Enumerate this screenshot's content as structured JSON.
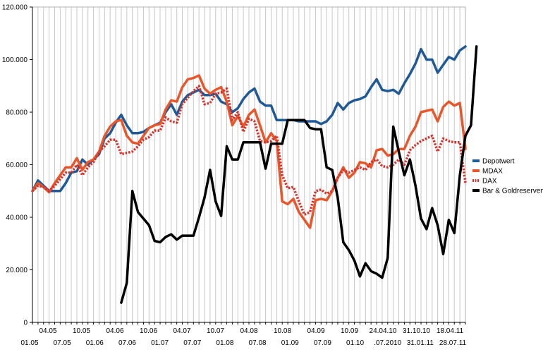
{
  "chart_data": {
    "type": "line",
    "title": "",
    "xlabel": "",
    "ylabel": "",
    "ylim": [
      0,
      120000
    ],
    "y_ticks": [
      "0",
      "20.000",
      "40.000",
      "60.000",
      "80.000",
      "100.000",
      "120.000"
    ],
    "y_tick_values": [
      0,
      20000,
      40000,
      60000,
      80000,
      100000,
      120000
    ],
    "x_tick_labels_upper": [
      "04.05",
      "10.05",
      "04.06",
      "10.06",
      "04.07",
      "10.07",
      "04.08",
      "10.08",
      "04.09",
      "10.09",
      "24.04.10",
      "31.10.10",
      "18.04.11"
    ],
    "x_tick_labels_lower": [
      "01.05",
      "07.05",
      "01.06",
      "07.06",
      "01.07",
      "07.07",
      "01.08",
      "07.08",
      "01.09",
      "07.09",
      "01.10",
      ".07.2010",
      "31.01.11",
      "28.07.11"
    ],
    "grid": "vertical",
    "legend_position": "right",
    "series": [
      {
        "name": "Depotwert",
        "color": "#1f5a96",
        "style": "solid",
        "values": [
          50000,
          54000,
          52000,
          50000,
          50000,
          50000,
          53000,
          57000,
          57500,
          62000,
          60000,
          62000,
          64000,
          70000,
          72000,
          76000,
          79000,
          75000,
          72000,
          72000,
          72500,
          74000,
          75000,
          76000,
          80000,
          83000,
          79000,
          84000,
          86500,
          87500,
          88500,
          86500,
          86500,
          87000,
          84000,
          83000,
          80000,
          81500,
          85000,
          87500,
          89000,
          84000,
          82500,
          82500,
          77000,
          77000,
          77000,
          77000,
          76500,
          76500,
          76500,
          76500,
          75500,
          76500,
          79000,
          83500,
          81000,
          83500,
          84500,
          85000,
          86000,
          89500,
          92500,
          88500,
          88000,
          88500,
          87000,
          91000,
          94500,
          98500,
          104000,
          100000,
          100000,
          95000,
          98000,
          101000,
          100000,
          103500,
          105000
        ]
      },
      {
        "name": "MDAX",
        "color": "#e8562a",
        "style": "solid",
        "values": [
          50000,
          53000,
          51500,
          49500,
          53000,
          56000,
          59000,
          59000,
          62500,
          58000,
          61000,
          62000,
          65000,
          71000,
          74500,
          76500,
          77000,
          71000,
          68500,
          68000,
          71000,
          74000,
          75000,
          75500,
          81000,
          84500,
          84000,
          89500,
          92500,
          93000,
          94000,
          89000,
          87000,
          88500,
          89500,
          84000,
          75000,
          78500,
          74500,
          79000,
          81000,
          75000,
          68500,
          72000,
          69000,
          46000,
          45000,
          47000,
          42000,
          39000,
          36000,
          46500,
          47000,
          46500,
          50000,
          55000,
          59000,
          55000,
          57000,
          61000,
          60500,
          59000,
          65500,
          66000,
          63500,
          64000,
          66000,
          66000,
          71000,
          74500,
          80000,
          80500,
          81000,
          76500,
          82000,
          84000,
          82500,
          83500,
          66000
        ]
      },
      {
        "name": "DAX",
        "color": "#d9322b",
        "style": "dotted",
        "values": [
          50000,
          52000,
          51500,
          50000,
          52000,
          54500,
          57000,
          57000,
          60000,
          56000,
          59000,
          61000,
          65000,
          67000,
          69500,
          69500,
          64000,
          64500,
          65000,
          67000,
          69500,
          70500,
          73000,
          73000,
          78000,
          76500,
          76000,
          83000,
          85500,
          88000,
          90000,
          83000,
          83500,
          87000,
          87500,
          89000,
          77000,
          80000,
          72500,
          77500,
          76500,
          69000,
          68500,
          69000,
          71000,
          56000,
          51000,
          51500,
          46000,
          41000,
          42000,
          50000,
          50500,
          49000,
          50000,
          55000,
          58000,
          57000,
          58000,
          59000,
          58000,
          61000,
          62000,
          59500,
          59000,
          60000,
          62000,
          60000,
          65500,
          67500,
          69000,
          70000,
          71000,
          65000,
          70000,
          69000,
          68500,
          68500,
          53000
        ]
      },
      {
        "name": "Bar & Goldreserven",
        "color": "#000000",
        "style": "solid",
        "values": [
          null,
          null,
          null,
          null,
          null,
          null,
          null,
          null,
          null,
          null,
          null,
          null,
          null,
          null,
          null,
          null,
          7500,
          15000,
          50000,
          42000,
          39500,
          37000,
          31000,
          30500,
          32500,
          33500,
          31500,
          33000,
          33000,
          33000,
          40000,
          47500,
          58000,
          46000,
          40500,
          67000,
          62000,
          62000,
          68500,
          68500,
          68500,
          68500,
          58500,
          68000,
          68000,
          68000,
          77000,
          77000,
          77000,
          77000,
          74000,
          73500,
          73500,
          59000,
          58000,
          47500,
          30500,
          27500,
          23500,
          17500,
          22500,
          19500,
          18500,
          17000,
          24500,
          74500,
          65000,
          56000,
          62000,
          52000,
          39500,
          35500,
          43500,
          37000,
          26000,
          39000,
          34000,
          56000,
          71000,
          75000,
          105000
        ]
      }
    ]
  }
}
